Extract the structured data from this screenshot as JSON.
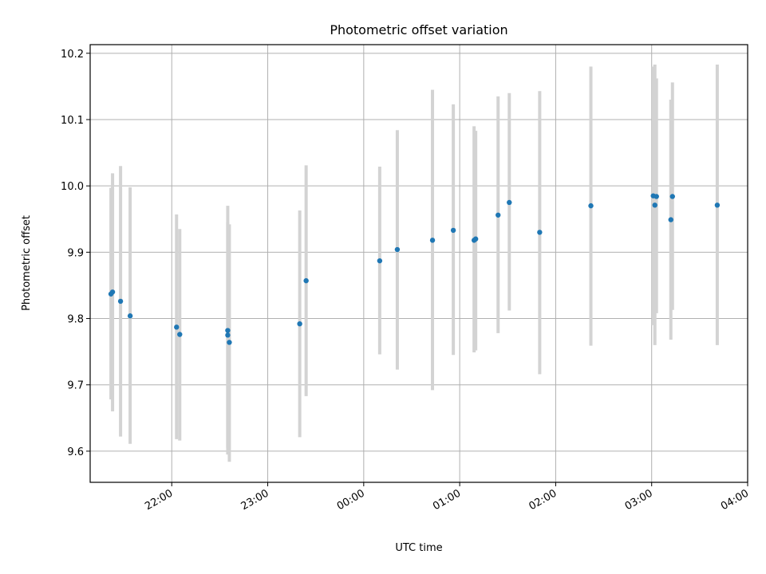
{
  "chart_data": {
    "type": "scatter",
    "title": "Photometric offset variation",
    "xlabel": "UTC time",
    "ylabel": "Photometric offset",
    "x_unit": "UTC hh:mm (times after 24:00 are on the next day)",
    "xlim": [
      "21:09",
      "04:00"
    ],
    "ylim": [
      9.553,
      10.213
    ],
    "x_ticks": [
      "22:00",
      "23:00",
      "00:00",
      "01:00",
      "02:00",
      "03:00",
      "04:00"
    ],
    "y_ticks": [
      "9.6",
      "9.7",
      "9.8",
      "9.9",
      "10.0",
      "10.1",
      "10.2"
    ],
    "grid": true,
    "point_color": "#1f77b4",
    "errorbar_color": "#d3d3d3",
    "points": [
      {
        "x": "21:22",
        "y": 9.837,
        "y_low": 9.678,
        "y_high": 9.997
      },
      {
        "x": "21:23",
        "y": 9.84,
        "y_low": 9.66,
        "y_high": 10.019
      },
      {
        "x": "21:28",
        "y": 9.826,
        "y_low": 9.622,
        "y_high": 10.03
      },
      {
        "x": "21:34",
        "y": 9.804,
        "y_low": 9.611,
        "y_high": 9.998
      },
      {
        "x": "22:03",
        "y": 9.787,
        "y_low": 9.618,
        "y_high": 9.957
      },
      {
        "x": "22:05",
        "y": 9.776,
        "y_low": 9.616,
        "y_high": 9.935
      },
      {
        "x": "22:35",
        "y": 9.775,
        "y_low": 9.605,
        "y_high": 9.945
      },
      {
        "x": "22:35",
        "y": 9.782,
        "y_low": 9.595,
        "y_high": 9.97
      },
      {
        "x": "22:36",
        "y": 9.764,
        "y_low": 9.584,
        "y_high": 9.942
      },
      {
        "x": "23:20",
        "y": 9.792,
        "y_low": 9.621,
        "y_high": 9.963
      },
      {
        "x": "23:24",
        "y": 9.857,
        "y_low": 9.683,
        "y_high": 10.031
      },
      {
        "x": "24:10",
        "y": 9.887,
        "y_low": 9.746,
        "y_high": 10.029
      },
      {
        "x": "24:21",
        "y": 9.904,
        "y_low": 9.723,
        "y_high": 10.084
      },
      {
        "x": "24:43",
        "y": 9.918,
        "y_low": 9.692,
        "y_high": 10.145
      },
      {
        "x": "24:56",
        "y": 9.933,
        "y_low": 9.745,
        "y_high": 10.123
      },
      {
        "x": "25:09",
        "y": 9.918,
        "y_low": 9.749,
        "y_high": 10.09
      },
      {
        "x": "25:10",
        "y": 9.92,
        "y_low": 9.752,
        "y_high": 10.083
      },
      {
        "x": "25:24",
        "y": 9.956,
        "y_low": 9.778,
        "y_high": 10.135
      },
      {
        "x": "25:31",
        "y": 9.975,
        "y_low": 9.812,
        "y_high": 10.14
      },
      {
        "x": "25:50",
        "y": 9.93,
        "y_low": 9.716,
        "y_high": 10.143
      },
      {
        "x": "26:22",
        "y": 9.97,
        "y_low": 9.759,
        "y_high": 10.18
      },
      {
        "x": "27:01",
        "y": 9.985,
        "y_low": 9.79,
        "y_high": 10.18
      },
      {
        "x": "27:02",
        "y": 9.971,
        "y_low": 9.76,
        "y_high": 10.183
      },
      {
        "x": "27:03",
        "y": 9.984,
        "y_low": 9.808,
        "y_high": 10.162
      },
      {
        "x": "27:12",
        "y": 9.949,
        "y_low": 9.768,
        "y_high": 10.13
      },
      {
        "x": "27:13",
        "y": 9.984,
        "y_low": 9.813,
        "y_high": 10.156
      },
      {
        "x": "27:41",
        "y": 9.971,
        "y_low": 9.76,
        "y_high": 10.183
      }
    ]
  }
}
